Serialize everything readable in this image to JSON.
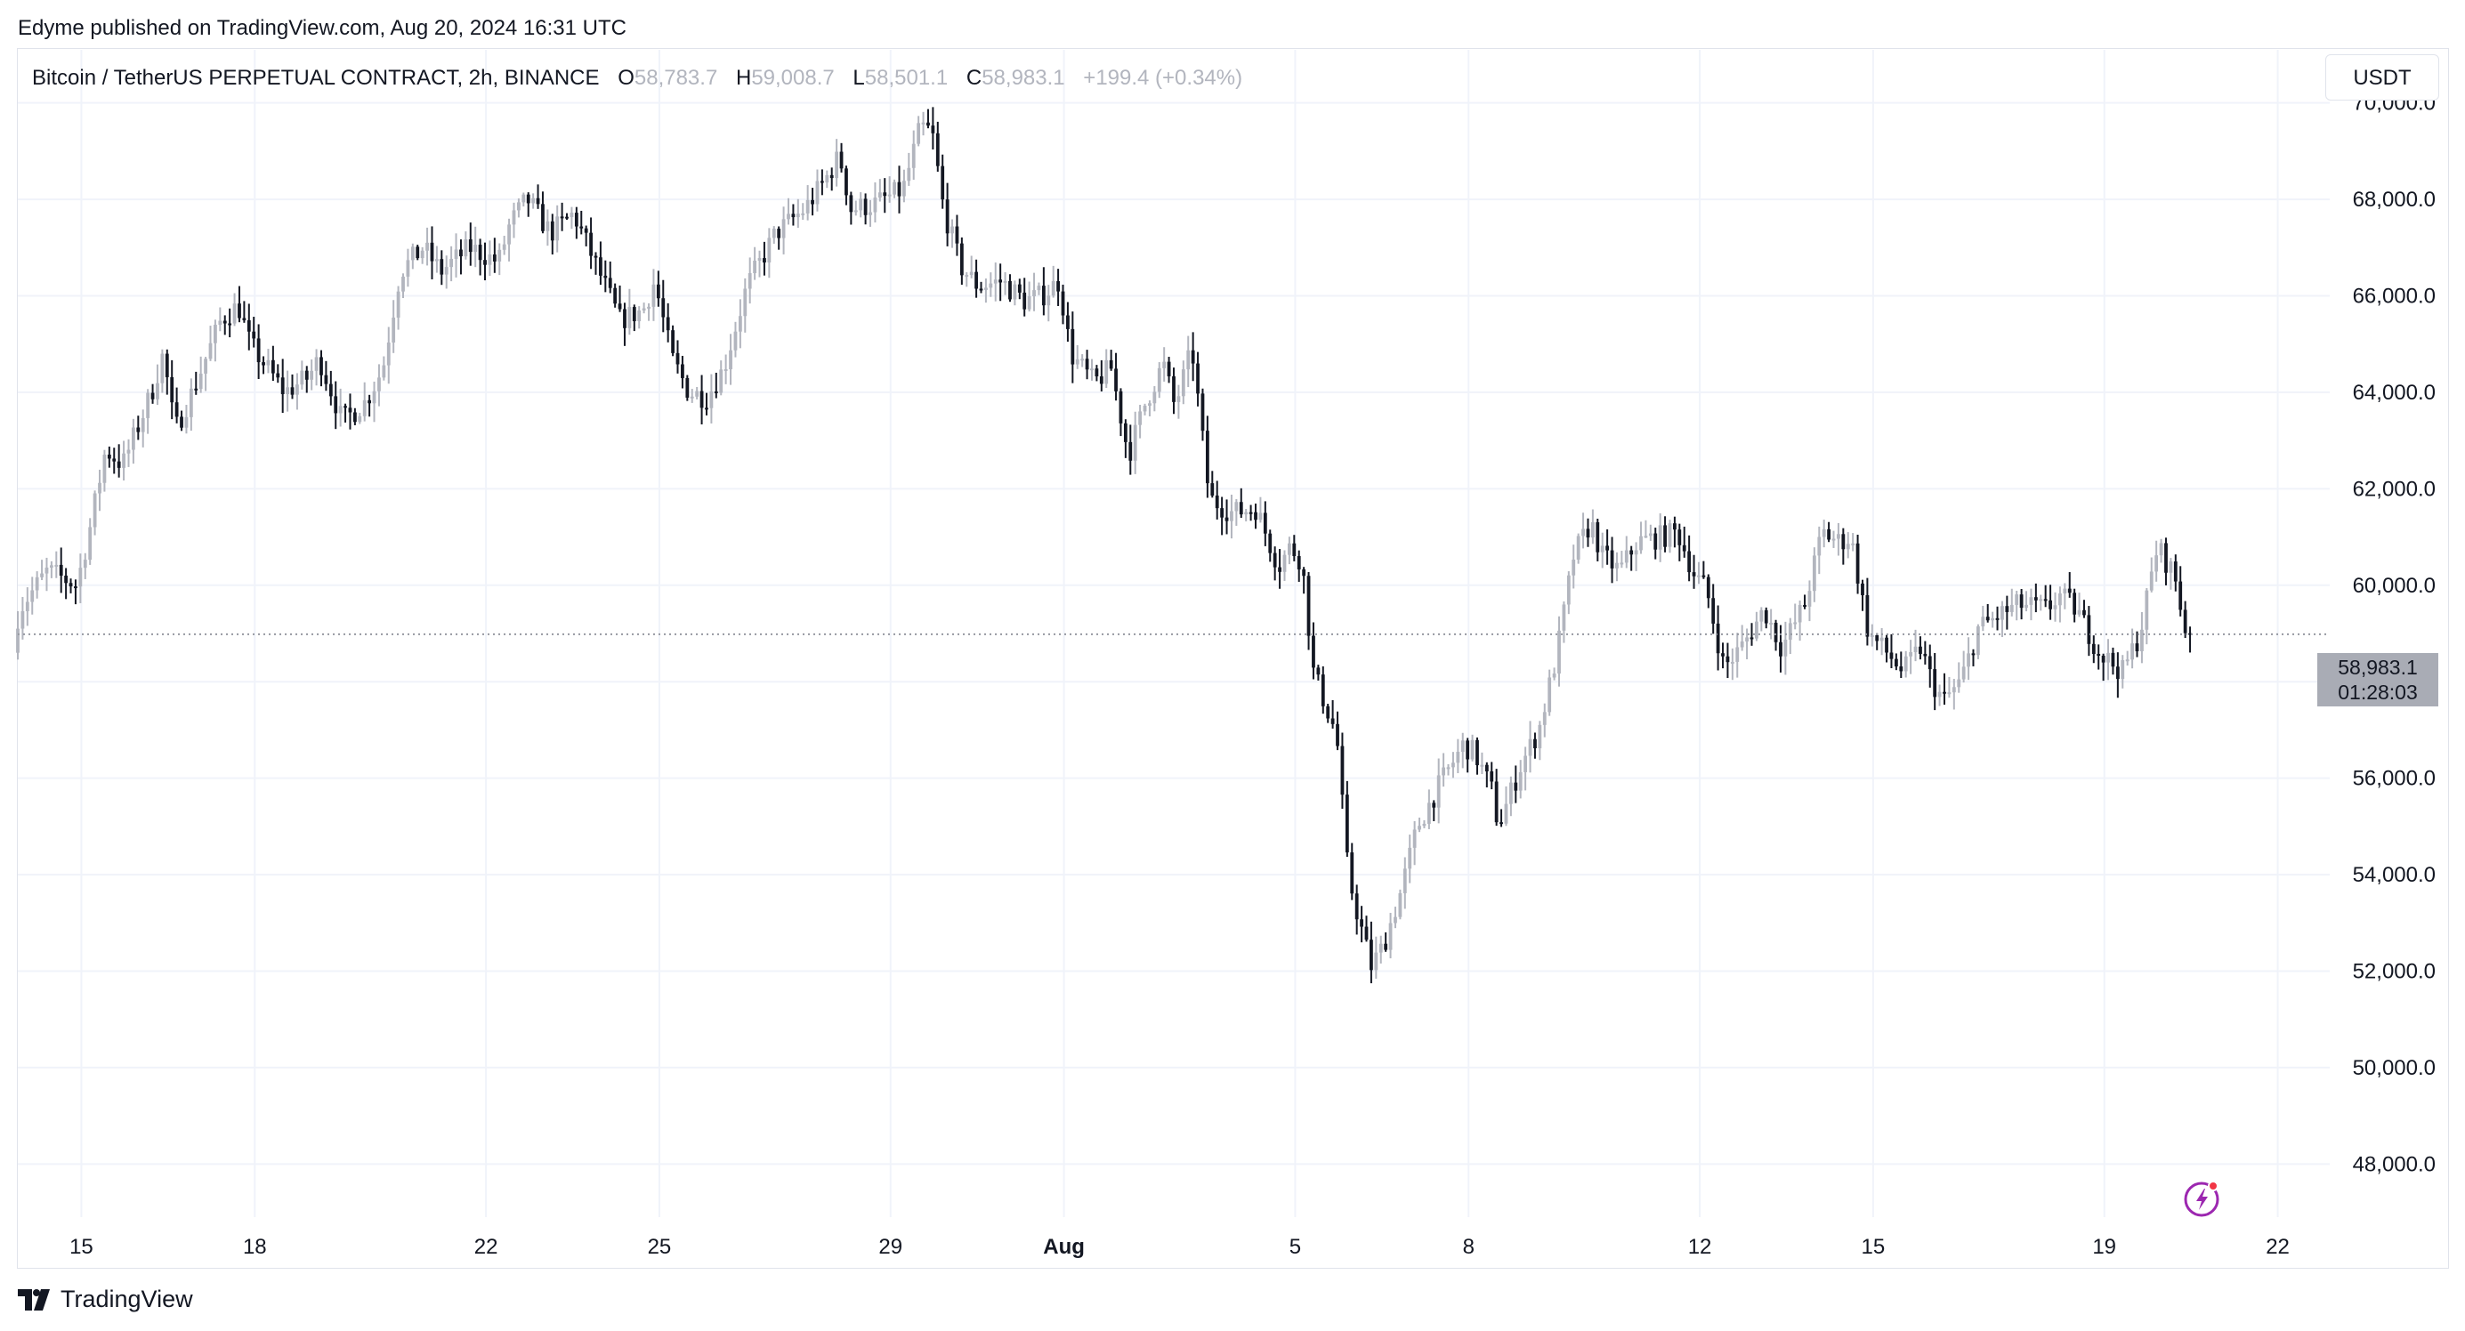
{
  "publisher_line": "Edyme published on TradingView.com, Aug 20, 2024 16:31 UTC",
  "legend": {
    "title": "Bitcoin / TetherUS PERPETUAL CONTRACT, 2h, BINANCE",
    "open_label": "O",
    "open": "58,783.7",
    "high_label": "H",
    "high": "59,008.7",
    "low_label": "L",
    "low": "58,501.1",
    "close_label": "C",
    "close": "58,983.1",
    "change": "+199.4 (+0.34%)"
  },
  "currency_button": "USDT",
  "price_badge": {
    "price": "58,983.1",
    "countdown": "01:28:03"
  },
  "footer": {
    "brand": "TradingView"
  },
  "icons": {
    "logo": "tradingview-logo-icon",
    "bolt": "lightning-bolt-icon"
  },
  "colors": {
    "up": "#b2b5be",
    "down": "#131722",
    "grid": "#f0f3fa",
    "badge": "#a9acb5",
    "bolt": "#9c27b0",
    "notify": "#f23645"
  },
  "chart_data": {
    "type": "candlestick",
    "interval": "2h",
    "y_axis": {
      "ticks": [
        "48,000.0",
        "50,000.0",
        "52,000.0",
        "54,000.0",
        "56,000.0",
        "58,000.0",
        "60,000.0",
        "62,000.0",
        "64,000.0",
        "66,000.0",
        "68,000.0",
        "70,000.0"
      ],
      "tick_values": [
        48000,
        50000,
        52000,
        54000,
        56000,
        58000,
        60000,
        62000,
        64000,
        66000,
        68000,
        70000
      ],
      "ylim": [
        46900,
        71100
      ]
    },
    "x_axis": {
      "labels": [
        "15",
        "18",
        "22",
        "25",
        "29",
        "Aug",
        "5",
        "8",
        "12",
        "15",
        "19",
        "22"
      ],
      "label_days": [
        0,
        3,
        7,
        10,
        14,
        17,
        21,
        24,
        28,
        31,
        35,
        38
      ],
      "bold_labels": [
        "Aug"
      ],
      "xlim_days": [
        -1.1,
        38.9
      ]
    },
    "last_price": 58983.1,
    "series_anchors": [
      [
        -1.1,
        58600
      ],
      [
        -1.0,
        59500
      ],
      [
        -0.5,
        60300
      ],
      [
        0,
        60000
      ],
      [
        0.2,
        61000
      ],
      [
        0.5,
        62800
      ],
      [
        0.8,
        62500
      ],
      [
        1.3,
        64000
      ],
      [
        1.5,
        64800
      ],
      [
        1.7,
        63200
      ],
      [
        2.0,
        64000
      ],
      [
        2.5,
        65500
      ],
      [
        2.8,
        65800
      ],
      [
        3.0,
        65000
      ],
      [
        3.3,
        64500
      ],
      [
        3.6,
        64000
      ],
      [
        4.0,
        64300
      ],
      [
        4.2,
        64700
      ],
      [
        4.6,
        63400
      ],
      [
        5.0,
        63800
      ],
      [
        5.3,
        64500
      ],
      [
        5.6,
        66500
      ],
      [
        6.0,
        67000
      ],
      [
        6.3,
        66500
      ],
      [
        6.8,
        67000
      ],
      [
        7.3,
        66700
      ],
      [
        7.5,
        67500
      ],
      [
        7.8,
        68000
      ],
      [
        8.2,
        67300
      ],
      [
        8.6,
        67700
      ],
      [
        9.0,
        66600
      ],
      [
        9.4,
        65500
      ],
      [
        9.8,
        65700
      ],
      [
        10.0,
        66300
      ],
      [
        10.3,
        64700
      ],
      [
        10.6,
        64000
      ],
      [
        10.9,
        63900
      ],
      [
        11.2,
        64500
      ],
      [
        11.6,
        66200
      ],
      [
        12.1,
        67300
      ],
      [
        12.6,
        67800
      ],
      [
        12.9,
        68300
      ],
      [
        13.2,
        68900
      ],
      [
        13.4,
        67800
      ],
      [
        13.8,
        67900
      ],
      [
        14.3,
        68200
      ],
      [
        14.6,
        69500
      ],
      [
        14.8,
        69400
      ],
      [
        15.0,
        67800
      ],
      [
        15.3,
        66600
      ],
      [
        15.6,
        66200
      ],
      [
        16.0,
        66300
      ],
      [
        16.4,
        65900
      ],
      [
        16.7,
        66000
      ],
      [
        17.0,
        66300
      ],
      [
        17.2,
        64800
      ],
      [
        17.6,
        64200
      ],
      [
        17.9,
        64500
      ],
      [
        18.2,
        62700
      ],
      [
        18.5,
        63800
      ],
      [
        18.8,
        64600
      ],
      [
        19.0,
        63700
      ],
      [
        19.3,
        64900
      ],
      [
        19.6,
        61800
      ],
      [
        20.0,
        61500
      ],
      [
        20.4,
        61600
      ],
      [
        20.8,
        60400
      ],
      [
        21.0,
        60800
      ],
      [
        21.2,
        60500
      ],
      [
        21.4,
        58200
      ],
      [
        21.8,
        56900
      ],
      [
        22.0,
        54000
      ],
      [
        22.2,
        53000
      ],
      [
        22.4,
        52100
      ],
      [
        22.6,
        52500
      ],
      [
        22.9,
        53600
      ],
      [
        23.2,
        55000
      ],
      [
        23.6,
        55900
      ],
      [
        24.0,
        56700
      ],
      [
        24.2,
        56500
      ],
      [
        24.5,
        55700
      ],
      [
        24.6,
        55000
      ],
      [
        25.0,
        56300
      ],
      [
        25.3,
        57000
      ],
      [
        25.6,
        58500
      ],
      [
        25.9,
        60600
      ],
      [
        26.2,
        61300
      ],
      [
        26.4,
        60600
      ],
      [
        26.7,
        60300
      ],
      [
        27.0,
        60900
      ],
      [
        27.4,
        61000
      ],
      [
        27.7,
        61100
      ],
      [
        28.0,
        60200
      ],
      [
        28.2,
        59900
      ],
      [
        28.5,
        58300
      ],
      [
        28.8,
        58700
      ],
      [
        29.2,
        59500
      ],
      [
        29.5,
        58700
      ],
      [
        29.9,
        59600
      ],
      [
        30.2,
        61100
      ],
      [
        30.5,
        60900
      ],
      [
        30.7,
        61000
      ],
      [
        31.0,
        59000
      ],
      [
        31.4,
        58500
      ],
      [
        31.6,
        58200
      ],
      [
        31.9,
        58700
      ],
      [
        32.1,
        58000
      ],
      [
        32.3,
        57600
      ],
      [
        32.6,
        58000
      ],
      [
        32.9,
        59100
      ],
      [
        33.3,
        59400
      ],
      [
        33.6,
        59600
      ],
      [
        34.1,
        59500
      ],
      [
        34.3,
        59800
      ],
      [
        34.6,
        59500
      ],
      [
        35.0,
        58600
      ],
      [
        35.4,
        58200
      ],
      [
        35.7,
        59000
      ],
      [
        36.0,
        60800
      ],
      [
        36.3,
        60200
      ],
      [
        36.5,
        58983
      ]
    ]
  }
}
